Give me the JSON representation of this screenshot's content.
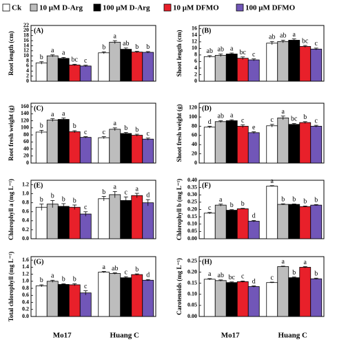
{
  "legend": {
    "series": [
      {
        "name": "Ck",
        "color": "#ffffff"
      },
      {
        "name": "10 μM D-Arg",
        "color": "#bdbdbd"
      },
      {
        "name": "100 μM D-Arg",
        "color": "#000000"
      },
      {
        "name": "10 μM DFMO",
        "color": "#e8202a"
      },
      {
        "name": "100 μM DFMO",
        "color": "#7156b8"
      }
    ]
  },
  "chart_data": [
    {
      "type": "bar",
      "panel": "(A)",
      "ylabel": "Root length (cm)",
      "ylim": [
        0,
        22
      ],
      "yticks": [
        0,
        2,
        4,
        6,
        8,
        10,
        12,
        14,
        16,
        18,
        20,
        22
      ],
      "series": [
        {
          "values": [
            7.2,
            11.2
          ],
          "errors": [
            0.5,
            0.4
          ],
          "annotations": [
            "b",
            "b"
          ]
        },
        {
          "values": [
            10.0,
            15.4
          ],
          "errors": [
            0.4,
            0.6
          ],
          "annotations": [
            "a",
            "a"
          ]
        },
        {
          "values": [
            9.0,
            12.6
          ],
          "errors": [
            0.4,
            0.5
          ],
          "annotations": [
            "a",
            "ab"
          ]
        },
        {
          "values": [
            6.4,
            11.5
          ],
          "errors": [
            0.3,
            0.3
          ],
          "annotations": [
            "bc",
            "b"
          ]
        },
        {
          "values": [
            6.0,
            11.4
          ],
          "errors": [
            0.3,
            0.3
          ],
          "annotations": [
            "c",
            "b"
          ]
        }
      ]
    },
    {
      "type": "bar",
      "panel": "(B)",
      "ylabel": "Shoot length (cm)",
      "ylim": [
        0,
        17
      ],
      "yticks": [
        0,
        2,
        4,
        6,
        8,
        10,
        12,
        14,
        16
      ],
      "series": [
        {
          "values": [
            7.5,
            11.6
          ],
          "errors": [
            0.3,
            0.5
          ],
          "annotations": [
            "ab",
            "ab"
          ]
        },
        {
          "values": [
            7.9,
            12.1
          ],
          "errors": [
            0.4,
            0.4
          ],
          "annotations": [
            "ab",
            "ab"
          ]
        },
        {
          "values": [
            8.3,
            12.5
          ],
          "errors": [
            0.3,
            0.4
          ],
          "annotations": [
            "a",
            "a"
          ]
        },
        {
          "values": [
            7.0,
            10.6
          ],
          "errors": [
            0.4,
            0.3
          ],
          "annotations": [
            "bc",
            "bc"
          ]
        },
        {
          "values": [
            6.5,
            9.8
          ],
          "errors": [
            0.3,
            0.3
          ],
          "annotations": [
            "c",
            "c"
          ]
        }
      ]
    },
    {
      "type": "bar",
      "panel": "(C)",
      "ylabel": "Root fresh weight (g)",
      "ylim": [
        0,
        170
      ],
      "yticks": [
        0,
        20,
        40,
        60,
        80,
        100,
        120,
        140,
        160
      ],
      "series": [
        {
          "values": [
            88,
            72
          ],
          "errors": [
            5,
            3
          ],
          "annotations": [
            "b",
            "c"
          ]
        },
        {
          "values": [
            122,
            96
          ],
          "errors": [
            4,
            4
          ],
          "annotations": [
            "a",
            "a"
          ]
        },
        {
          "values": [
            124,
            84
          ],
          "errors": [
            4,
            3
          ],
          "annotations": [
            "a",
            "b"
          ]
        },
        {
          "values": [
            89,
            79
          ],
          "errors": [
            3,
            3
          ],
          "annotations": [
            "b",
            "b"
          ]
        },
        {
          "values": [
            73,
            68
          ],
          "errors": [
            2,
            3
          ],
          "annotations": [
            "c",
            "c"
          ]
        }
      ]
    },
    {
      "type": "bar",
      "panel": "(D)",
      "ylabel": "Shoot fresh weight (g)",
      "ylim": [
        0,
        130
      ],
      "yticks": [
        0,
        20,
        40,
        60,
        80,
        100,
        120
      ],
      "series": [
        {
          "values": [
            78,
            81
          ],
          "errors": [
            2,
            3
          ],
          "annotations": [
            "d",
            "c"
          ]
        },
        {
          "values": [
            90,
            98
          ],
          "errors": [
            2,
            4
          ],
          "annotations": [
            "ab",
            "a"
          ]
        },
        {
          "values": [
            92,
            84
          ],
          "errors": [
            2,
            2
          ],
          "annotations": [
            "a",
            "bc"
          ]
        },
        {
          "values": [
            80,
            88
          ],
          "errors": [
            3,
            2
          ],
          "annotations": [
            "c",
            "b"
          ]
        },
        {
          "values": [
            66,
            80
          ],
          "errors": [
            2,
            2
          ],
          "annotations": [
            "e",
            "c"
          ]
        }
      ]
    },
    {
      "type": "bar",
      "panel": "(E)",
      "ylabel": "Chlorophyll a (mg L⁻¹)",
      "ylim": [
        0,
        1.3
      ],
      "yticks": [
        {
          "value": 0,
          "label": "0.0"
        },
        0.2,
        0.4,
        0.6,
        0.8,
        {
          "value": 1,
          "label": "1.0"
        },
        1.2
      ],
      "series": [
        {
          "values": [
            0.7,
            0.89
          ],
          "errors": [
            0.07,
            0.05
          ],
          "annotations": [
            "b",
            "b"
          ]
        },
        {
          "values": [
            0.77,
            0.98
          ],
          "errors": [
            0.08,
            0.07
          ],
          "annotations": [
            "b",
            "a"
          ]
        },
        {
          "values": [
            0.72,
            0.85
          ],
          "errors": [
            0.06,
            0.08
          ],
          "annotations": [
            "b",
            "c"
          ]
        },
        {
          "values": [
            0.7,
            0.96
          ],
          "errors": [
            0.05,
            0.05
          ],
          "annotations": [
            "b",
            "a"
          ]
        },
        {
          "values": [
            0.55,
            0.8
          ],
          "errors": [
            0.05,
            0.07
          ],
          "annotations": [
            "c",
            "d"
          ]
        }
      ]
    },
    {
      "type": "bar",
      "panel": "(F)",
      "ylabel": "Chlorophyll b (mg L⁻¹)",
      "ylim": [
        0,
        0.4
      ],
      "yticks": [
        {
          "value": 0,
          "label": "0.00"
        },
        0.05,
        {
          "value": 0.1,
          "label": "0.10"
        },
        0.15,
        {
          "value": 0.2,
          "label": "0.20"
        },
        0.25,
        {
          "value": 0.3,
          "label": "0.30"
        },
        0.35,
        {
          "value": 0.4,
          "label": "0.40"
        }
      ],
      "series": [
        {
          "values": [
            0.175,
            0.36
          ],
          "errors": [
            0.005,
            0.003
          ],
          "annotations": [
            "c",
            "a"
          ]
        },
        {
          "values": [
            0.23,
            0.235
          ],
          "errors": [
            0.007,
            0.004
          ],
          "annotations": [
            "a",
            "b"
          ]
        },
        {
          "values": [
            0.195,
            0.235
          ],
          "errors": [
            0.004,
            0.003
          ],
          "annotations": [
            "b",
            "b"
          ]
        },
        {
          "values": [
            0.205,
            0.22
          ],
          "errors": [
            0.003,
            0.004
          ],
          "annotations": [
            "b",
            "b"
          ]
        },
        {
          "values": [
            0.12,
            0.23
          ],
          "errors": [
            0.005,
            0.004
          ],
          "annotations": [
            "d",
            "b"
          ]
        }
      ]
    },
    {
      "type": "bar",
      "panel": "(G)",
      "ylabel": "Total chlorophyll (mg L⁻¹)",
      "ylim": [
        0,
        1.7
      ],
      "categories": [
        "Mo17",
        "Huang C"
      ],
      "yticks": [
        {
          "value": 0,
          "label": "0.0"
        },
        0.2,
        0.4,
        0.6,
        0.8,
        {
          "value": 1,
          "label": "1.0"
        },
        1.2,
        1.4,
        1.6
      ],
      "series": [
        {
          "values": [
            0.87,
            1.26
          ],
          "errors": [
            0.03,
            0.02
          ],
          "annotations": [
            "b",
            "a"
          ]
        },
        {
          "values": [
            1.0,
            1.22
          ],
          "errors": [
            0.03,
            0.02
          ],
          "annotations": [
            "a",
            "ab"
          ]
        },
        {
          "values": [
            0.91,
            1.1
          ],
          "errors": [
            0.02,
            0.03
          ],
          "annotations": [
            "b",
            "c"
          ]
        },
        {
          "values": [
            0.9,
            1.19
          ],
          "errors": [
            0.03,
            0.02
          ],
          "annotations": [
            "b",
            "b"
          ]
        },
        {
          "values": [
            0.67,
            1.03
          ],
          "errors": [
            0.06,
            0.02
          ],
          "annotations": [
            "c",
            "d"
          ]
        }
      ]
    },
    {
      "type": "bar",
      "panel": "(H)",
      "ylabel": "Carotenoids (mg L⁻¹)",
      "ylim": [
        0,
        0.27
      ],
      "categories": [
        "Mo17",
        "Huang C"
      ],
      "yticks": [
        {
          "value": 0,
          "label": "0.00"
        },
        0.05,
        {
          "value": 0.1,
          "label": "0.10"
        },
        0.15,
        {
          "value": 0.2,
          "label": "0.20"
        },
        0.25
      ],
      "series": [
        {
          "values": [
            0.168,
            0.153
          ],
          "errors": [
            0.003,
            0.002
          ],
          "annotations": [
            "a",
            "c"
          ]
        },
        {
          "values": [
            0.162,
            0.225
          ],
          "errors": [
            0.003,
            0.002
          ],
          "annotations": [
            "ab",
            "a"
          ]
        },
        {
          "values": [
            0.153,
            0.175
          ],
          "errors": [
            0.003,
            0.003
          ],
          "annotations": [
            "bc",
            "b"
          ]
        },
        {
          "values": [
            0.157,
            0.222
          ],
          "errors": [
            0.003,
            0.003
          ],
          "annotations": [
            "c",
            "a"
          ]
        },
        {
          "values": [
            0.135,
            0.17
          ],
          "errors": [
            0.003,
            0.003
          ],
          "annotations": [
            "d",
            "b"
          ]
        }
      ]
    }
  ]
}
